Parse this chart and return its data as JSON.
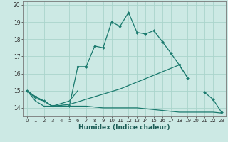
{
  "xlabel": "Humidex (Indice chaleur)",
  "background_color": "#cce9e4",
  "grid_color": "#aad4cc",
  "line_color": "#1a7a6e",
  "x_values": [
    0,
    1,
    2,
    3,
    4,
    5,
    6,
    7,
    8,
    9,
    10,
    11,
    12,
    13,
    14,
    15,
    16,
    17,
    18,
    19,
    20,
    21,
    22,
    23
  ],
  "line1_y": [
    15.0,
    14.65,
    14.4,
    14.1,
    14.1,
    14.1,
    16.4,
    16.4,
    17.6,
    17.5,
    19.0,
    18.75,
    19.55,
    18.4,
    18.3,
    18.5,
    17.85,
    17.2,
    16.5,
    15.75,
    null,
    14.9,
    14.5,
    13.75
  ],
  "line2_y": [
    15.0,
    14.65,
    14.4,
    14.1,
    14.25,
    14.4,
    15.0,
    null,
    null,
    null,
    null,
    null,
    null,
    null,
    null,
    null,
    null,
    null,
    null,
    null,
    null,
    null,
    null,
    null
  ],
  "line3_y": [
    15.0,
    14.55,
    14.4,
    14.1,
    14.15,
    14.2,
    14.35,
    14.5,
    14.65,
    14.8,
    14.95,
    15.1,
    15.3,
    15.5,
    15.7,
    15.9,
    16.1,
    16.3,
    16.5,
    15.75,
    null,
    null,
    null,
    null
  ],
  "line4_y": [
    15.0,
    14.4,
    14.1,
    14.1,
    14.1,
    14.1,
    14.1,
    14.1,
    14.05,
    14.0,
    14.0,
    14.0,
    14.0,
    14.0,
    13.95,
    13.9,
    13.85,
    13.8,
    13.75,
    13.75,
    13.75,
    13.75,
    13.75,
    13.7
  ],
  "ylim": [
    13.5,
    20.2
  ],
  "xlim": [
    -0.5,
    23.5
  ],
  "yticks": [
    14,
    15,
    16,
    17,
    18,
    19,
    20
  ],
  "xticks": [
    0,
    1,
    2,
    3,
    4,
    5,
    6,
    7,
    8,
    9,
    10,
    11,
    12,
    13,
    14,
    15,
    16,
    17,
    18,
    19,
    20,
    21,
    22,
    23
  ]
}
